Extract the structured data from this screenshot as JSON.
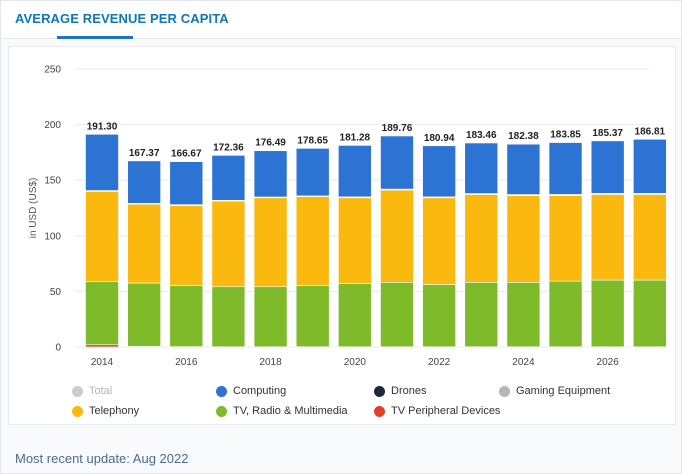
{
  "header": {
    "title": "AVERAGE REVENUE PER CAPITA"
  },
  "footer": {
    "update_text": "Most recent update: Aug 2022"
  },
  "colors": {
    "Computing": "#2d73d4",
    "Drones": "#1b2a3a",
    "Gaming Equipment": "#b5b5b5",
    "Telephony": "#fbb80f",
    "TV, Radio & Multimedia": "#7fba2a",
    "TV Peripheral Devices": "#e53e26",
    "Total": "#cccccc"
  },
  "legend": [
    {
      "name": "Total",
      "color": "#cccccc",
      "enabled": false
    },
    {
      "name": "Computing",
      "color": "#2d73d4",
      "enabled": true
    },
    {
      "name": "Drones",
      "color": "#1b2a3a",
      "enabled": true
    },
    {
      "name": "Gaming Equipment",
      "color": "#b5b5b5",
      "enabled": true
    },
    {
      "name": "Telephony",
      "color": "#fbb80f",
      "enabled": true
    },
    {
      "name": "TV, Radio & Multimedia",
      "color": "#7fba2a",
      "enabled": true
    },
    {
      "name": "TV Peripheral Devices",
      "color": "#e53e26",
      "enabled": true
    }
  ],
  "chart_data": {
    "type": "bar",
    "stacked": true,
    "categories": [
      "2014",
      "2015",
      "2016",
      "2017",
      "2018",
      "2019",
      "2020",
      "2021",
      "2022",
      "2023",
      "2024",
      "2025",
      "2026",
      "2027"
    ],
    "x_tick_labels": [
      "2014",
      "2016",
      "2018",
      "2020",
      "2022",
      "2024",
      "2026"
    ],
    "ylabel": "in USD (US$)",
    "ylim": [
      0,
      250
    ],
    "yticks": [
      0,
      50,
      100,
      150,
      200,
      250
    ],
    "grid": true,
    "legend_position": "bottom",
    "totals": [
      "191.30",
      "167.37",
      "166.67",
      "172.36",
      "176.49",
      "178.65",
      "181.28",
      "189.76",
      "180.94",
      "183.46",
      "182.38",
      "183.85",
      "185.37",
      "186.81"
    ],
    "series": [
      {
        "name": "TV Peripheral Devices",
        "values": [
          2,
          0.5,
          0.3,
          0.2,
          0.2,
          0.2,
          0.2,
          0.2,
          0.2,
          0.2,
          0.2,
          0.2,
          0.2,
          0.2
        ]
      },
      {
        "name": "TV, Radio & Multimedia",
        "values": [
          57,
          57,
          55,
          54,
          54,
          55,
          57,
          58,
          56,
          58,
          58,
          59,
          60,
          60
        ]
      },
      {
        "name": "Telephony",
        "values": [
          81,
          71,
          72,
          77,
          80,
          80,
          77,
          83,
          78,
          79,
          78,
          77,
          77,
          77
        ]
      },
      {
        "name": "Gaming Equipment",
        "values": [
          0.5,
          0.5,
          0.5,
          0.5,
          0.5,
          0.5,
          0.6,
          0.6,
          0.6,
          0.6,
          0.6,
          0.7,
          0.7,
          0.7
        ]
      },
      {
        "name": "Drones",
        "values": [
          0.2,
          0.2,
          0.2,
          0.2,
          0.2,
          0.2,
          0.2,
          0.2,
          0.2,
          0.2,
          0.3,
          0.3,
          0.3,
          0.3
        ]
      },
      {
        "name": "Computing",
        "values": [
          50.6,
          38.17,
          38.67,
          40.46,
          41.59,
          42.75,
          46.28,
          47.76,
          45.94,
          45.46,
          45.28,
          46.65,
          47.17,
          48.61
        ]
      }
    ]
  }
}
